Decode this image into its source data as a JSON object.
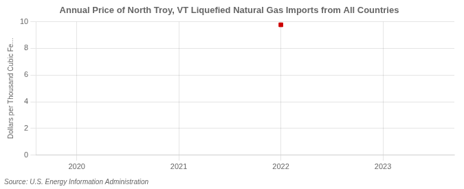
{
  "chart_data": {
    "type": "scatter",
    "title": "Annual Price of North Troy, VT Liquefied Natural Gas Imports from All Countries",
    "ylabel": "Dollars per Thousand Cubic Fe...",
    "source": "Source: U.S. Energy Information Administration",
    "x": [
      2022
    ],
    "values": [
      9.77
    ],
    "color": "#cc0000",
    "marker": "square",
    "xlim": [
      2019.6,
      2023.7
    ],
    "xticks": [
      2020,
      2021,
      2022,
      2023
    ],
    "ylim": [
      0,
      10
    ],
    "yticks": [
      0,
      2,
      4,
      6,
      8,
      10
    ],
    "grid": true
  }
}
